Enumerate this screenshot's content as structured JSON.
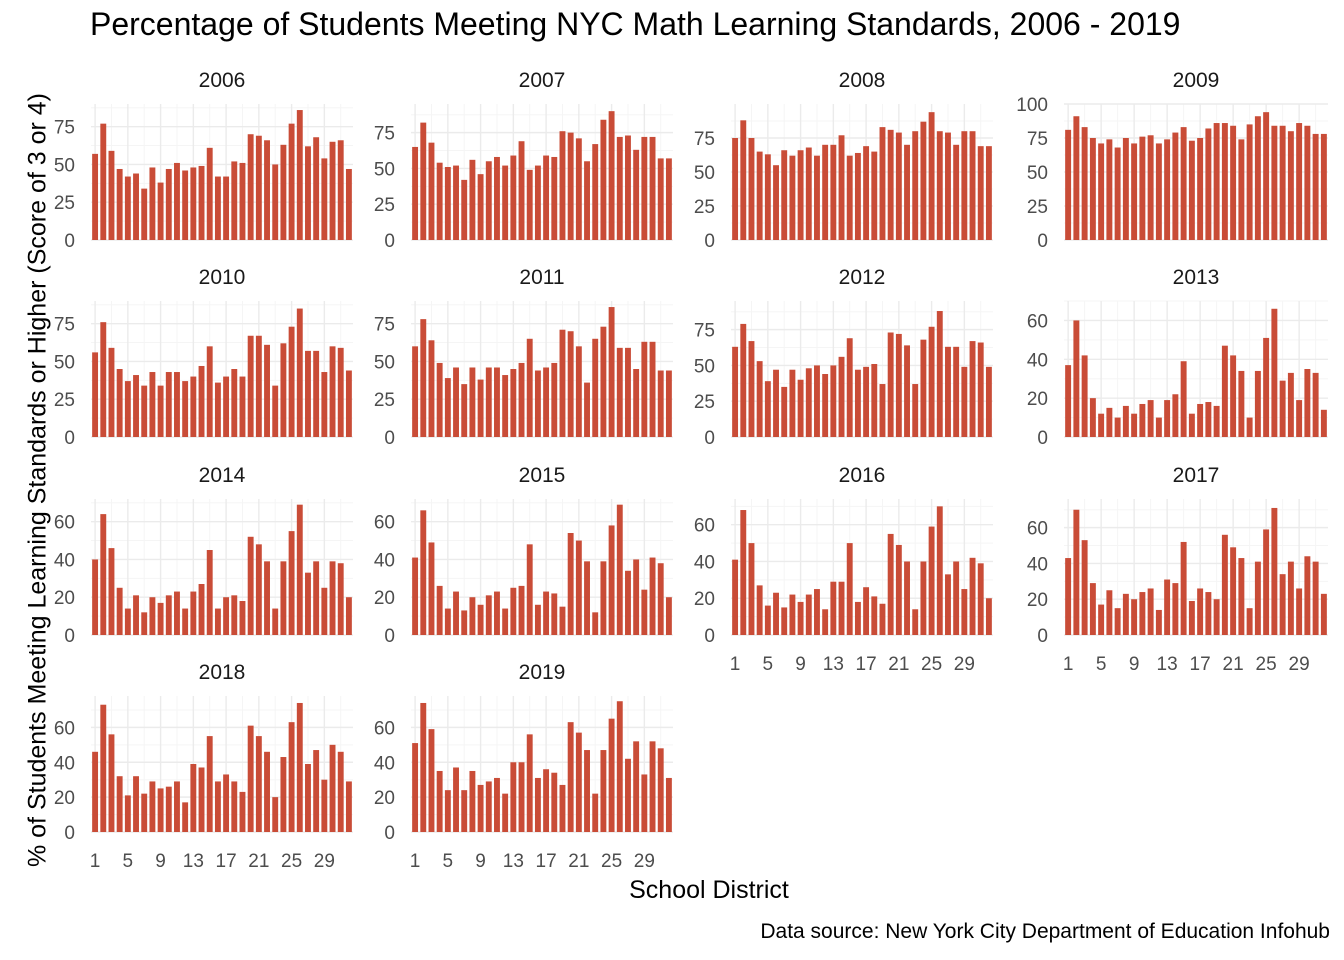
{
  "title": "Percentage of Students Meeting NYC Math Learning Standards, 2006 - 2019",
  "ylabel": "% of Students Meeting Learning Standards or Higher (Score of 3 or 4)",
  "xlabel": "School District",
  "caption": "Data source: New York City Department of Education Infohub",
  "colors": {
    "bar": "#c94c37",
    "grid_major": "#ebebeb",
    "grid_minor": "#f5f5f5",
    "tick_text": "#4d4d4d"
  },
  "chart_data": {
    "type": "bar",
    "facet_by": "year",
    "x_ticks": [
      "1",
      "5",
      "9",
      "13",
      "17",
      "21",
      "25",
      "29"
    ],
    "x_range": [
      1,
      32
    ],
    "panels": [
      {
        "year": "2006",
        "ylim": [
          0,
          90
        ],
        "yticks": [
          0,
          25,
          50,
          75
        ],
        "values": [
          57,
          77,
          59,
          47,
          42,
          44,
          34,
          48,
          38,
          47,
          51,
          46,
          48,
          49,
          61,
          42,
          42,
          52,
          51,
          70,
          69,
          66,
          50,
          63,
          77,
          86,
          62,
          68,
          54,
          65,
          66,
          47
        ]
      },
      {
        "year": "2007",
        "ylim": [
          0,
          95
        ],
        "yticks": [
          0,
          25,
          50,
          75
        ],
        "values": [
          65,
          82,
          68,
          54,
          51,
          52,
          42,
          56,
          46,
          55,
          58,
          52,
          59,
          69,
          49,
          52,
          59,
          58,
          76,
          75,
          71,
          55,
          67,
          84,
          90,
          72,
          73,
          63,
          72,
          72,
          57,
          57
        ]
      },
      {
        "year": "2008",
        "ylim": [
          0,
          100
        ],
        "yticks": [
          0,
          25,
          50,
          75
        ],
        "values": [
          75,
          88,
          75,
          65,
          63,
          55,
          66,
          62,
          66,
          68,
          62,
          70,
          70,
          77,
          62,
          64,
          69,
          65,
          83,
          81,
          79,
          70,
          80,
          87,
          94,
          80,
          79,
          70,
          80,
          80,
          69,
          69
        ]
      },
      {
        "year": "2009",
        "ylim": [
          0,
          100
        ],
        "yticks": [
          0,
          25,
          50,
          75,
          100
        ],
        "values": [
          81,
          91,
          83,
          75,
          71,
          74,
          68,
          75,
          71,
          76,
          77,
          71,
          74,
          79,
          83,
          73,
          75,
          82,
          86,
          86,
          84,
          74,
          85,
          91,
          94,
          84,
          84,
          80,
          86,
          84,
          78,
          78
        ]
      },
      {
        "year": "2010",
        "ylim": [
          0,
          90
        ],
        "yticks": [
          0,
          25,
          50,
          75
        ],
        "values": [
          56,
          76,
          59,
          45,
          37,
          41,
          34,
          43,
          34,
          43,
          43,
          37,
          40,
          47,
          60,
          36,
          40,
          45,
          40,
          67,
          67,
          61,
          34,
          62,
          73,
          85,
          57,
          57,
          43,
          60,
          59,
          44
        ]
      },
      {
        "year": "2011",
        "ylim": [
          0,
          90
        ],
        "yticks": [
          0,
          25,
          50,
          75
        ],
        "values": [
          60,
          78,
          64,
          49,
          39,
          46,
          35,
          46,
          38,
          46,
          46,
          41,
          45,
          49,
          65,
          44,
          46,
          49,
          71,
          70,
          60,
          36,
          65,
          73,
          86,
          59,
          59,
          45,
          63,
          63,
          44,
          44
        ]
      },
      {
        "year": "2012",
        "ylim": [
          0,
          95
        ],
        "yticks": [
          0,
          25,
          50,
          75
        ],
        "values": [
          63,
          79,
          67,
          53,
          39,
          47,
          35,
          47,
          40,
          48,
          50,
          44,
          50,
          56,
          69,
          47,
          49,
          51,
          37,
          73,
          72,
          64,
          37,
          68,
          77,
          88,
          63,
          63,
          49,
          67,
          66,
          49
        ]
      },
      {
        "year": "2013",
        "ylim": [
          0,
          70
        ],
        "yticks": [
          0,
          20,
          40,
          60
        ],
        "values": [
          37,
          60,
          42,
          20,
          12,
          15,
          10,
          16,
          12,
          17,
          19,
          10,
          19,
          22,
          39,
          12,
          17,
          18,
          16,
          47,
          42,
          34,
          10,
          34,
          51,
          66,
          29,
          33,
          19,
          35,
          33,
          14
        ]
      },
      {
        "year": "2014",
        "ylim": [
          0,
          72
        ],
        "yticks": [
          0,
          20,
          40,
          60
        ],
        "values": [
          40,
          64,
          46,
          25,
          14,
          21,
          12,
          20,
          17,
          21,
          23,
          14,
          23,
          27,
          45,
          14,
          20,
          21,
          18,
          52,
          48,
          39,
          14,
          39,
          55,
          69,
          33,
          39,
          25,
          39,
          38,
          20
        ]
      },
      {
        "year": "2015",
        "ylim": [
          0,
          72
        ],
        "yticks": [
          0,
          20,
          40,
          60
        ],
        "values": [
          41,
          66,
          49,
          26,
          14,
          23,
          13,
          20,
          16,
          21,
          23,
          14,
          25,
          26,
          48,
          16,
          23,
          22,
          15,
          54,
          50,
          39,
          12,
          39,
          58,
          69,
          34,
          40,
          24,
          41,
          38,
          20
        ]
      },
      {
        "year": "2016",
        "ylim": [
          0,
          74
        ],
        "yticks": [
          0,
          20,
          40,
          60
        ],
        "values": [
          41,
          68,
          50,
          27,
          16,
          23,
          15,
          22,
          18,
          22,
          25,
          14,
          29,
          29,
          50,
          18,
          26,
          21,
          17,
          55,
          49,
          40,
          14,
          40,
          59,
          70,
          33,
          40,
          25,
          42,
          39,
          20
        ]
      },
      {
        "year": "2017",
        "ylim": [
          0,
          76
        ],
        "yticks": [
          0,
          20,
          40,
          60
        ],
        "values": [
          43,
          70,
          53,
          29,
          17,
          25,
          15,
          23,
          20,
          24,
          26,
          14,
          31,
          29,
          52,
          19,
          26,
          24,
          20,
          56,
          49,
          43,
          15,
          41,
          59,
          71,
          34,
          41,
          26,
          44,
          41,
          23
        ]
      },
      {
        "year": "2018",
        "ylim": [
          0,
          78
        ],
        "yticks": [
          0,
          20,
          40,
          60
        ],
        "values": [
          46,
          73,
          56,
          32,
          21,
          32,
          22,
          29,
          25,
          26,
          29,
          17,
          39,
          37,
          55,
          29,
          33,
          29,
          23,
          61,
          55,
          46,
          20,
          43,
          63,
          74,
          39,
          47,
          30,
          50,
          46,
          29
        ]
      },
      {
        "year": "2019",
        "ylim": [
          0,
          78
        ],
        "yticks": [
          0,
          20,
          40,
          60
        ],
        "values": [
          51,
          74,
          59,
          35,
          24,
          37,
          24,
          35,
          27,
          29,
          31,
          22,
          40,
          40,
          56,
          31,
          36,
          34,
          27,
          63,
          57,
          47,
          22,
          47,
          65,
          75,
          42,
          52,
          33,
          52,
          48,
          31
        ]
      }
    ]
  }
}
